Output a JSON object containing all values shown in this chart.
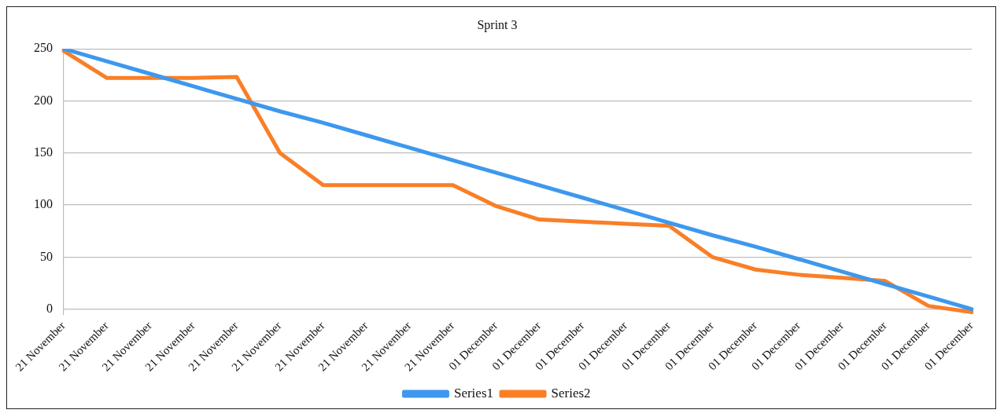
{
  "chart_data": {
    "type": "line",
    "title": "Sprint 3",
    "categories": [
      "21 November",
      "21 November",
      "21 November",
      "21 November",
      "21 November",
      "21 November",
      "21 November",
      "21 November",
      "21 November",
      "21 November",
      "01 December",
      "01 December",
      "01 December",
      "01 December",
      "01 December",
      "01 December",
      "01 December",
      "01 December",
      "01 December",
      "01 December",
      "01 December",
      "01 December"
    ],
    "series": [
      {
        "name": "Series1",
        "color": "#3d98ee",
        "values": [
          250,
          238,
          226,
          214,
          202,
          190,
          179,
          167,
          155,
          143,
          131,
          119,
          107,
          95,
          83,
          71,
          60,
          48,
          36,
          24,
          12,
          0
        ]
      },
      {
        "name": "Series2",
        "color": "#f97f27",
        "values": [
          248,
          222,
          222,
          222,
          223,
          150,
          119,
          119,
          119,
          119,
          99,
          86,
          84,
          82,
          80,
          50,
          38,
          33,
          30,
          27,
          3,
          -3
        ]
      }
    ],
    "ylim": [
      -5,
      250
    ],
    "yticks": [
      0,
      50,
      100,
      150,
      200,
      250
    ],
    "grid": "y",
    "legend": "bottom",
    "marker": "none",
    "line_style": "solid"
  }
}
